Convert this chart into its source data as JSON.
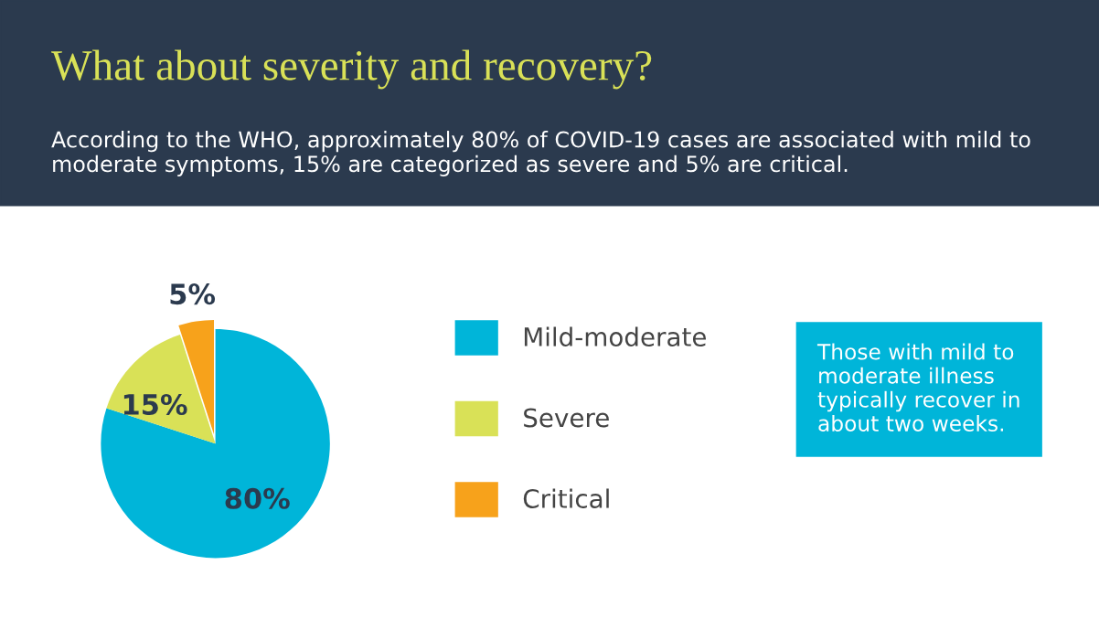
{
  "chart_data": {
    "type": "pie",
    "title": "What about severity and recovery?",
    "subtitle": "According to the WHO, approximately 80% of COVID-19 cases are associated with mild to moderate symptoms, 15% are categorized as severe and 5% are critical.",
    "categories": [
      "Mild-moderate",
      "Severe",
      "Critical"
    ],
    "values": [
      80,
      15,
      5
    ],
    "colors": [
      "#00b5d9",
      "#d9e157",
      "#f7a21b"
    ],
    "value_labels": [
      "80%",
      "15%",
      "5%"
    ],
    "legend": "right",
    "annotations": [
      "Those with mild to\nmoderate illness\ntypically recover in\nabout two weeks."
    ]
  }
}
